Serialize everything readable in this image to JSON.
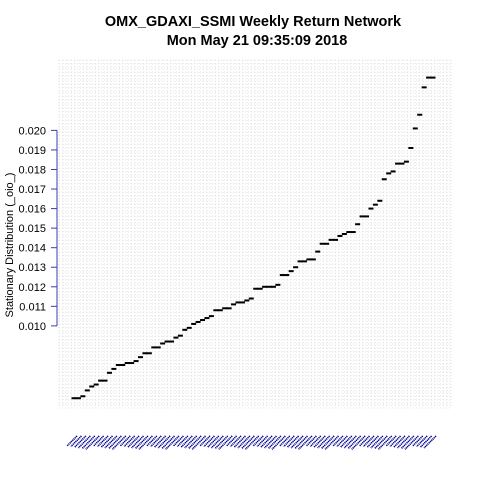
{
  "chart": {
    "title_line1": "OMX_GDAXI_SSMI  Weekly Return Network",
    "title_line2": "Mon May 21 09:35:09 2018",
    "ylabel": "Stationary Distribution (_oio_)"
  },
  "colors": {
    "axis": "#3b3bb0",
    "grid": "#c8c8c8",
    "points": "#000000",
    "xtick_labels": "#00008b"
  },
  "chart_data": {
    "type": "scatter",
    "title": "OMX_GDAXI_SSMI  Weekly Return Network\nMon May 21 09:35:09 2018",
    "xlabel": "",
    "ylabel": "Stationary Distribution (_oio_)",
    "ylim": [
      0.0058,
      0.0236
    ],
    "yticks": [
      0.01,
      0.011,
      0.012,
      0.013,
      0.014,
      0.015,
      0.016,
      0.017,
      0.018,
      0.019,
      0.02
    ],
    "ytick_labels": [
      "0.010",
      "0.011",
      "0.012",
      "0.013",
      "0.014",
      "0.015",
      "0.016",
      "0.017",
      "0.018",
      "0.019",
      "0.020"
    ],
    "grid": true,
    "series": [
      {
        "values": [
          0.0063,
          0.0063,
          0.0064,
          0.0067,
          0.0069,
          0.007,
          0.0072,
          0.0072,
          0.0076,
          0.0078,
          0.008,
          0.008,
          0.0081,
          0.0081,
          0.0082,
          0.0084,
          0.0086,
          0.0086,
          0.0089,
          0.0089,
          0.0091,
          0.0092,
          0.0092,
          0.0094,
          0.0095,
          0.0098,
          0.0099,
          0.0101,
          0.0102,
          0.0103,
          0.0104,
          0.0105,
          0.0108,
          0.0108,
          0.0109,
          0.0109,
          0.0111,
          0.0112,
          0.0112,
          0.0113,
          0.0114,
          0.0119,
          0.0119,
          0.012,
          0.012,
          0.012,
          0.0121,
          0.0126,
          0.0126,
          0.0128,
          0.013,
          0.0133,
          0.0133,
          0.0134,
          0.0134,
          0.0138,
          0.0142,
          0.0142,
          0.0144,
          0.0144,
          0.0146,
          0.0147,
          0.0148,
          0.0148,
          0.0152,
          0.0156,
          0.0156,
          0.016,
          0.0162,
          0.0164,
          0.0175,
          0.0178,
          0.0179,
          0.0183,
          0.0183,
          0.0184,
          0.0191,
          0.0201,
          0.0208,
          0.0222,
          0.0227,
          0.0227
        ]
      }
    ]
  }
}
